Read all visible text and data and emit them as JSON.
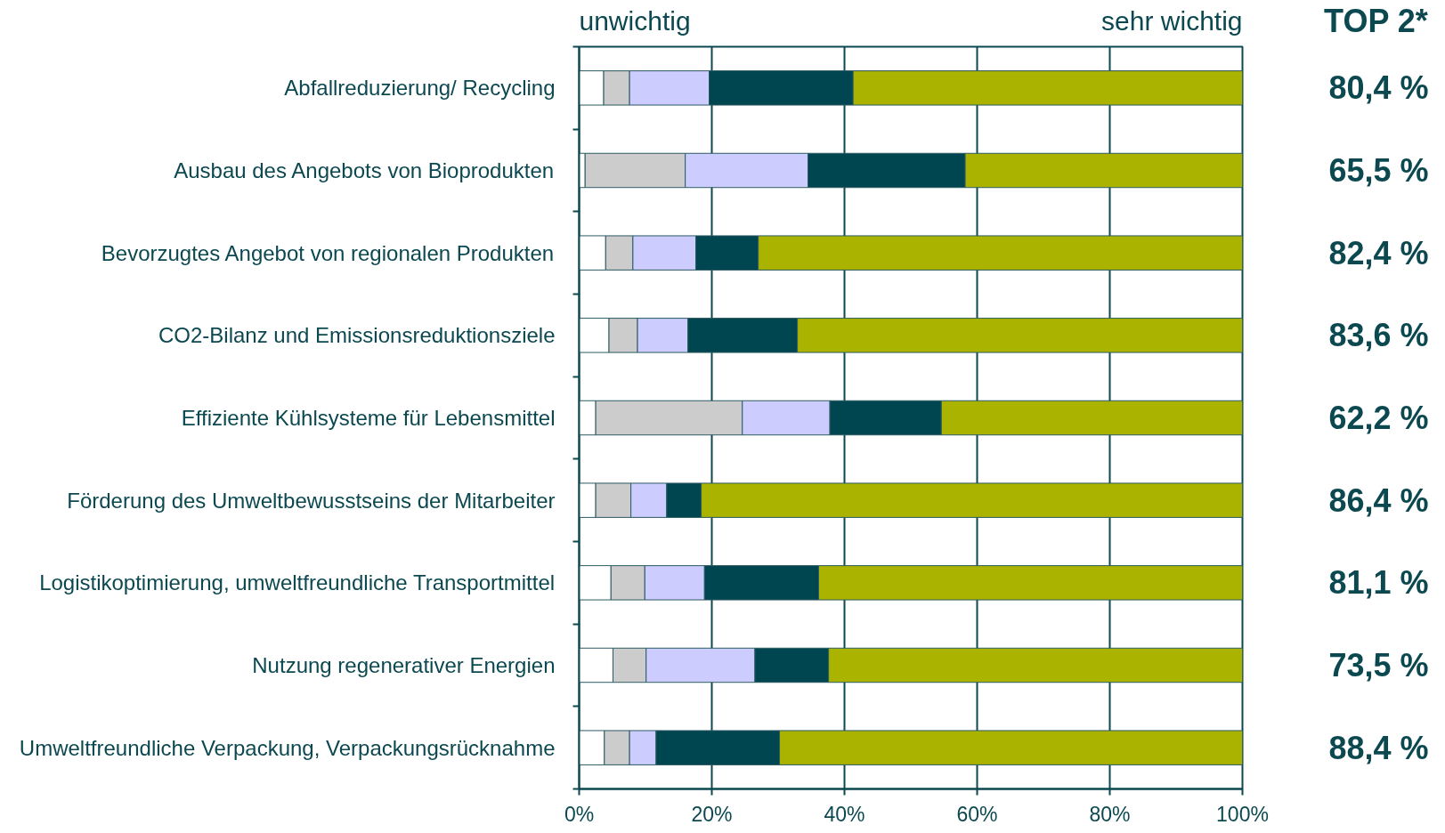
{
  "chart_data": {
    "type": "bar",
    "orientation": "horizontal",
    "stacked": true,
    "categories": [
      "Abfallreduzierung/ Recycling",
      "Ausbau des Angebots von Bioprodukten",
      "Bevorzugtes Angebot von regionalen Produkten",
      "CO2-Bilanz und Emissionsreduktionsziele",
      "Effiziente Kühlsysteme für Lebensmittel",
      "Förderung des Umweltbewusstseins der Mitarbeiter",
      "Logistikoptimierung, umweltfreundliche Transportmittel",
      "Nutzung regenerativer Energien",
      "Umweltfreundliche Verpackung, Verpackungsrücknahme"
    ],
    "series": [
      {
        "color": "#ffffff",
        "values": [
          3.7,
          0.9,
          4.0,
          4.5,
          2.5,
          2.5,
          4.8,
          5.1,
          3.8
        ]
      },
      {
        "color": "#cccccc",
        "values": [
          3.9,
          15.1,
          4.1,
          4.3,
          22.1,
          5.3,
          5.1,
          5.0,
          3.8
        ]
      },
      {
        "color": "#ccccff",
        "values": [
          12.0,
          18.5,
          9.5,
          7.6,
          13.2,
          5.4,
          9.0,
          16.4,
          4.0
        ]
      },
      {
        "color": "#004650",
        "values": [
          21.7,
          23.7,
          9.4,
          16.5,
          16.8,
          5.2,
          17.2,
          11.1,
          18.6
        ]
      },
      {
        "color": "#a9b300",
        "values": [
          58.7,
          41.8,
          73.0,
          67.1,
          45.4,
          81.6,
          63.9,
          62.4,
          69.8
        ]
      }
    ],
    "xlim": [
      0,
      100
    ],
    "xticks": [
      {
        "value": 0,
        "label": "0%"
      },
      {
        "value": 20,
        "label": "20%"
      },
      {
        "value": 40,
        "label": "40%"
      },
      {
        "value": 60,
        "label": "60%"
      },
      {
        "value": 80,
        "label": "80%"
      },
      {
        "value": 100,
        "label": "100%"
      }
    ],
    "grid": "x",
    "annotations": [
      "unwichtig",
      "sehr wichtig",
      "TOP 2*",
      "80,4 %",
      "65,5 %",
      "82,4 %",
      "83,6 %",
      "62,2 %",
      "86,4 %",
      "81,1 %",
      "73,5 %",
      "88,4 %"
    ]
  }
}
